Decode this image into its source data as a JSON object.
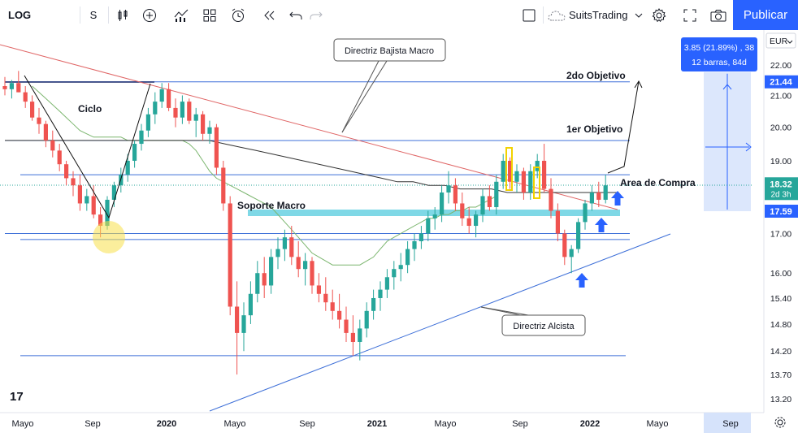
{
  "toolbar": {
    "symbol": "LOG",
    "interval": "S",
    "account": "SuitsTrading",
    "publish_label": "Publicar",
    "icons": [
      "candles-icon",
      "add-indicator-icon",
      "indicators-icon",
      "layout-icon",
      "alert-icon",
      "replay-icon",
      "undo-icon",
      "redo-icon",
      "square-icon",
      "cloud-icon",
      "chevron-down-icon",
      "settings-icon",
      "fullscreen-icon",
      "camera-icon"
    ]
  },
  "colors": {
    "up": "#26a69a",
    "down": "#ef5350",
    "resistance": "#e06666",
    "support_line": "#3d6fd8",
    "zone": "#7fd8e6",
    "ma_green": "#7cb66f",
    "ma_black": "#333333",
    "accent": "#2962ff"
  },
  "chart_data": {
    "type": "candlestick",
    "title": "",
    "currency": "EUR",
    "y_ticks": [
      "22.00",
      "21.00",
      "20.00",
      "19.00",
      "18.00",
      "17.00",
      "16.00",
      "15.40",
      "14.80",
      "14.20",
      "13.70",
      "13.20"
    ],
    "y_scale": "log",
    "ylim": [
      13.0,
      22.7
    ],
    "x_ticks": [
      "Mayo",
      "Sep",
      "2020",
      "Mayo",
      "Sep",
      "2021",
      "Mayo",
      "Sep",
      "2022",
      "Mayo",
      "Sep"
    ],
    "horizontal_levels": [
      21.44,
      19.6,
      18.6,
      17.0,
      16.95,
      14.1
    ],
    "price_labels": [
      {
        "value": "21.44",
        "price": 21.44,
        "kind": "level"
      },
      {
        "value": "18.32",
        "sub": "2d 3h",
        "price": 18.32,
        "kind": "last"
      },
      {
        "value": "17.59",
        "price": 17.59,
        "kind": "level"
      }
    ],
    "projection": {
      "line1": "3.85 (21.89%) , 38",
      "line2": "12 barras, 84d"
    },
    "annotations": [
      {
        "text": "Directriz Bajista Macro",
        "type": "callout"
      },
      {
        "text": "Directriz Alcista",
        "type": "callout"
      },
      {
        "text": "2do Objetivo",
        "type": "label"
      },
      {
        "text": "1er Objetivo",
        "type": "label"
      },
      {
        "text": "Area de Compra",
        "type": "label"
      },
      {
        "text": "Soporte Macro",
        "type": "label"
      },
      {
        "text": "Ciclo",
        "type": "label"
      }
    ],
    "series": [
      {
        "kind": "ohlc",
        "data": [
          [
            21.3,
            21.6,
            21.0,
            21.2
          ],
          [
            21.2,
            21.5,
            20.9,
            21.4
          ],
          [
            21.4,
            21.8,
            21.1,
            21.1
          ],
          [
            21.1,
            21.3,
            20.6,
            20.8
          ],
          [
            20.8,
            21.0,
            20.2,
            20.3
          ],
          [
            20.3,
            20.6,
            19.8,
            20.1
          ],
          [
            20.1,
            20.2,
            19.4,
            19.6
          ],
          [
            19.6,
            19.9,
            19.1,
            19.3
          ],
          [
            19.3,
            19.5,
            18.7,
            18.9
          ],
          [
            18.9,
            19.0,
            18.3,
            18.5
          ],
          [
            18.5,
            18.7,
            18.0,
            18.3
          ],
          [
            18.3,
            18.6,
            17.6,
            17.8
          ],
          [
            17.8,
            18.2,
            17.6,
            18.0
          ],
          [
            18.0,
            18.3,
            17.4,
            17.5
          ],
          [
            17.5,
            17.7,
            16.9,
            17.2
          ],
          [
            17.2,
            18.0,
            17.1,
            17.9
          ],
          [
            17.9,
            18.4,
            17.7,
            18.3
          ],
          [
            18.3,
            18.8,
            18.1,
            18.6
          ],
          [
            18.6,
            19.2,
            18.4,
            19.0
          ],
          [
            19.0,
            19.6,
            18.8,
            19.5
          ],
          [
            19.5,
            20.1,
            19.3,
            19.9
          ],
          [
            19.9,
            20.6,
            19.7,
            20.4
          ],
          [
            20.4,
            21.1,
            20.1,
            20.8
          ],
          [
            20.8,
            21.4,
            20.6,
            21.2
          ],
          [
            21.2,
            21.4,
            20.5,
            20.6
          ],
          [
            20.6,
            20.9,
            20.0,
            20.3
          ],
          [
            20.3,
            21.0,
            20.1,
            20.8
          ],
          [
            20.8,
            20.9,
            20.1,
            20.2
          ],
          [
            20.2,
            20.6,
            19.7,
            20.4
          ],
          [
            20.4,
            20.5,
            19.6,
            19.8
          ],
          [
            19.8,
            20.2,
            19.5,
            20.0
          ],
          [
            20.0,
            20.1,
            18.6,
            18.8
          ],
          [
            18.8,
            19.0,
            17.6,
            17.8
          ],
          [
            17.8,
            18.0,
            15.0,
            15.2
          ],
          [
            15.2,
            15.8,
            13.7,
            14.6
          ],
          [
            14.6,
            15.3,
            14.2,
            15.0
          ],
          [
            15.0,
            15.8,
            14.8,
            15.5
          ],
          [
            15.5,
            16.3,
            15.3,
            16.0
          ],
          [
            16.0,
            16.4,
            15.4,
            15.7
          ],
          [
            15.7,
            16.6,
            15.5,
            16.4
          ],
          [
            16.4,
            16.9,
            16.1,
            16.6
          ],
          [
            16.6,
            17.1,
            16.3,
            16.9
          ],
          [
            16.9,
            17.2,
            16.2,
            16.4
          ],
          [
            16.4,
            16.8,
            15.9,
            16.1
          ],
          [
            16.1,
            16.5,
            15.7,
            16.3
          ],
          [
            16.3,
            16.4,
            15.5,
            15.7
          ],
          [
            15.7,
            16.0,
            15.3,
            15.5
          ],
          [
            15.5,
            15.9,
            15.1,
            15.3
          ],
          [
            15.3,
            15.6,
            14.9,
            15.1
          ],
          [
            15.1,
            15.5,
            14.7,
            14.9
          ],
          [
            14.9,
            15.2,
            14.4,
            14.6
          ],
          [
            14.6,
            15.0,
            14.1,
            14.4
          ],
          [
            14.4,
            14.9,
            14.0,
            14.7
          ],
          [
            14.7,
            15.3,
            14.5,
            15.1
          ],
          [
            15.1,
            15.6,
            14.9,
            15.4
          ],
          [
            15.4,
            15.8,
            15.1,
            15.6
          ],
          [
            15.6,
            16.1,
            15.4,
            15.9
          ],
          [
            15.9,
            16.3,
            15.6,
            16.1
          ],
          [
            16.1,
            16.5,
            15.8,
            16.2
          ],
          [
            16.2,
            16.8,
            16.0,
            16.6
          ],
          [
            16.6,
            17.0,
            16.3,
            16.8
          ],
          [
            16.8,
            17.2,
            16.6,
            17.0
          ],
          [
            17.0,
            17.6,
            16.8,
            17.4
          ],
          [
            17.4,
            17.7,
            17.1,
            17.5
          ],
          [
            17.5,
            18.3,
            17.3,
            18.1
          ],
          [
            18.1,
            18.7,
            17.8,
            18.3
          ],
          [
            18.3,
            18.5,
            17.6,
            17.8
          ],
          [
            17.8,
            18.1,
            17.2,
            17.4
          ],
          [
            17.4,
            17.7,
            17.0,
            17.2
          ],
          [
            17.2,
            17.6,
            16.9,
            17.5
          ],
          [
            17.5,
            18.2,
            17.3,
            18.0
          ],
          [
            18.0,
            18.3,
            17.6,
            17.7
          ],
          [
            17.7,
            18.6,
            17.5,
            18.4
          ],
          [
            18.4,
            19.2,
            18.2,
            19.0
          ],
          [
            19.0,
            19.1,
            18.2,
            18.4
          ],
          [
            18.4,
            18.9,
            18.1,
            18.7
          ],
          [
            18.7,
            18.8,
            17.9,
            18.1
          ],
          [
            18.1,
            18.9,
            17.9,
            18.7
          ],
          [
            18.7,
            19.2,
            18.5,
            19.0
          ],
          [
            19.0,
            19.5,
            18.1,
            18.2
          ],
          [
            18.2,
            18.5,
            17.4,
            17.6
          ],
          [
            17.6,
            17.8,
            16.8,
            17.0
          ],
          [
            17.0,
            17.1,
            16.2,
            16.4
          ],
          [
            16.4,
            16.7,
            16.0,
            16.6
          ],
          [
            16.6,
            17.4,
            16.5,
            17.3
          ],
          [
            17.3,
            17.9,
            17.1,
            17.8
          ],
          [
            17.8,
            18.3,
            17.6,
            18.1
          ],
          [
            18.1,
            18.4,
            17.7,
            17.9
          ],
          [
            17.9,
            18.6,
            17.8,
            18.3
          ]
        ]
      },
      {
        "kind": "ma",
        "name": "",
        "values": [
          21.3,
          21.1,
          20.9,
          20.7,
          20.5,
          20.3,
          20.1,
          19.9,
          19.8,
          19.7,
          19.7,
          19.7,
          19.7,
          19.7,
          19.6,
          19.6,
          19.6,
          19.6,
          19.6,
          19.6,
          19.6,
          19.6,
          19.6,
          19.5,
          19.3,
          19.0,
          18.7,
          18.5,
          18.4,
          18.3,
          18.2,
          18.1,
          18.0,
          17.9,
          17.8,
          17.7,
          17.5,
          17.3,
          17.1,
          16.9,
          16.7,
          16.5,
          16.4,
          16.3,
          16.2,
          16.2,
          16.2,
          16.2,
          16.2,
          16.3,
          16.4,
          16.6,
          16.8,
          16.9,
          17.0,
          17.1,
          17.2,
          17.3,
          17.4,
          17.4,
          17.5,
          17.5,
          17.6,
          17.6,
          17.7,
          17.7,
          17.8,
          17.9,
          18.0
        ]
      },
      {
        "kind": "ma",
        "name": "",
        "values": [
          19.6,
          19.6,
          19.6,
          19.6,
          19.6,
          19.6,
          19.6,
          19.6,
          19.6,
          19.6,
          19.6,
          19.6,
          19.6,
          19.6,
          19.5,
          19.4,
          19.3,
          19.2,
          19.1,
          19.0,
          18.9,
          18.8,
          18.7,
          18.6,
          18.5,
          18.4,
          18.4,
          18.3,
          18.3,
          18.2,
          18.2,
          18.2,
          18.1,
          18.1,
          18.1,
          18.1,
          18.1,
          18.1,
          18.1,
          18.1
        ]
      }
    ]
  }
}
